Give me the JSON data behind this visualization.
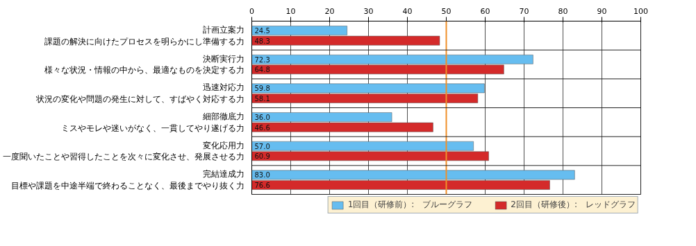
{
  "chart_data": {
    "type": "bar",
    "orientation": "horizontal",
    "categories": [
      "計画立案力",
      "決断実行力",
      "迅速対応力",
      "細部徹底力",
      "変化応用力",
      "完結達成力"
    ],
    "annotations": [
      "課題の解決に向けたプロセスを明らかにし準備する力",
      "様々な状況・情報の中から、最適なものを決定する力",
      "状況の変化や問題の発生に対して、すばやく対応する力",
      "ミスやモレや迷いがなく、一貫してやり遂げる力",
      "一度聞いたことや習得したことを次々に変化させ、発展させる力",
      "目標や課題を中途半端で終わることなく、最後までやり抜く力"
    ],
    "series": [
      {
        "name": "1回目（研修前）:　ブルーグラフ",
        "color": "#66bdf0",
        "values": [
          24.5,
          72.3,
          59.8,
          36.0,
          57.0,
          83.0
        ],
        "value_labels": [
          "24.5",
          "72.3",
          "59.8",
          "36.0",
          "57.0",
          "83.0"
        ]
      },
      {
        "name": "2回目（研修後）:　レッドグラフ",
        "color": "#d42a2a",
        "values": [
          48.3,
          64.8,
          58.1,
          46.6,
          60.9,
          76.6
        ],
        "value_labels": [
          "48.3",
          "64.8",
          "58.1",
          "46.6",
          "60.9",
          "76.6"
        ]
      }
    ],
    "xlim": [
      0,
      100
    ],
    "xticks": [
      0,
      10,
      20,
      30,
      40,
      50,
      60,
      70,
      80,
      90,
      100
    ],
    "ref_lines": [
      {
        "axis": "x",
        "value": 50,
        "color": "#f0902a"
      }
    ],
    "grid": "x",
    "legend": "bottom"
  }
}
